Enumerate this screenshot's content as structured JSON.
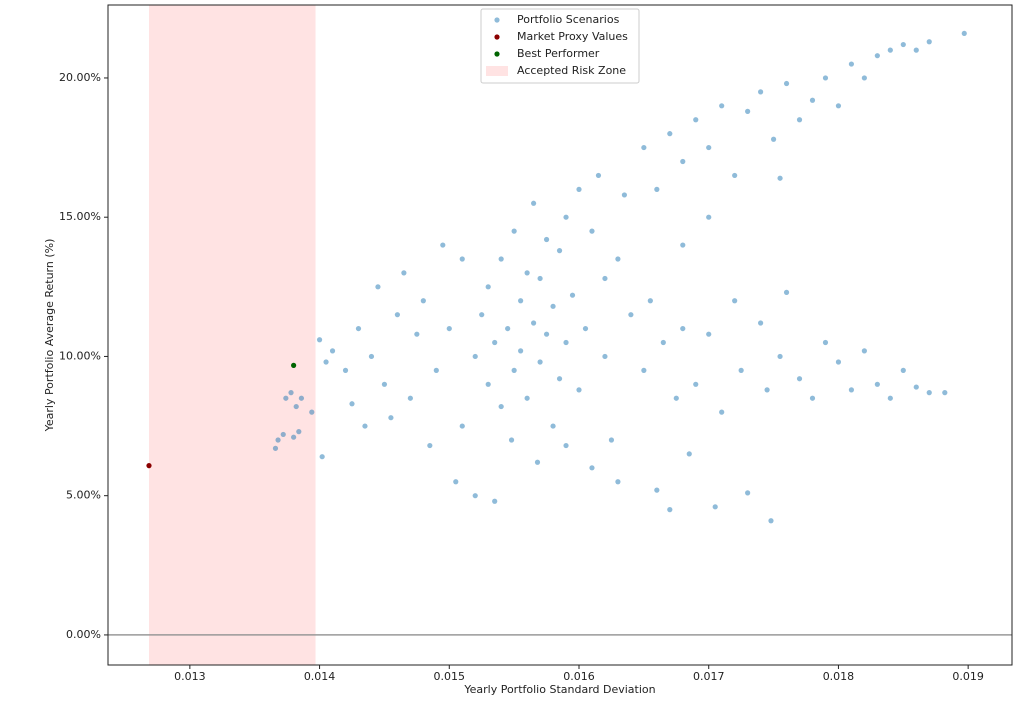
{
  "chart_data": {
    "type": "scatter",
    "xlabel": "Yearly Portfolio Standard Deviation",
    "ylabel": "Yearly Portfolio Average Return (%)",
    "xlim": [
      0.012369,
      0.019338
    ],
    "ylim": [
      -1.08,
      22.62
    ],
    "xticks": [
      0.013,
      0.014,
      0.015,
      0.016,
      0.017,
      0.018,
      0.019
    ],
    "yticks": [
      {
        "value": 0,
        "label": "0.00%"
      },
      {
        "value": 5,
        "label": "5.00%"
      },
      {
        "value": 10,
        "label": "10.00%"
      },
      {
        "value": 15,
        "label": "15.00%"
      },
      {
        "value": 20,
        "label": "20.00%"
      }
    ],
    "legend": "upper center",
    "span": {
      "name": "Accepted Risk Zone",
      "color": "#ffe3e3",
      "x": [
        0.012685,
        0.013969
      ]
    },
    "hline": {
      "y": 0,
      "color": "#999999"
    },
    "series": [
      {
        "name": "Portfolio Scenarios",
        "color": "#1f77b4",
        "opacity": 0.5,
        "x": [
          0.01366,
          0.01368,
          0.01372,
          0.0138,
          0.01384,
          0.01374,
          0.01378,
          0.01382,
          0.01386,
          0.01394,
          0.01402,
          0.014,
          0.01405,
          0.0141,
          0.0142,
          0.01425,
          0.0143,
          0.01435,
          0.0144,
          0.01445,
          0.0145,
          0.01455,
          0.0146,
          0.01465,
          0.0147,
          0.01475,
          0.0148,
          0.01485,
          0.0149,
          0.01495,
          0.015,
          0.01505,
          0.0151,
          0.0151,
          0.0152,
          0.01525,
          0.0153,
          0.0153,
          0.01535,
          0.0154,
          0.0154,
          0.01545,
          0.0155,
          0.0155,
          0.01555,
          0.01555,
          0.0156,
          0.0156,
          0.01565,
          0.01565,
          0.0157,
          0.0157,
          0.01575,
          0.01575,
          0.0158,
          0.0158,
          0.01585,
          0.01585,
          0.0159,
          0.0159,
          0.01595,
          0.016,
          0.016,
          0.01605,
          0.0161,
          0.01615,
          0.0162,
          0.0162,
          0.01625,
          0.0163,
          0.01635,
          0.0164,
          0.0152,
          0.01535,
          0.01548,
          0.01568,
          0.0159,
          0.0161,
          0.0163,
          0.0165,
          0.01655,
          0.0166,
          0.01665,
          0.0167,
          0.01675,
          0.0168,
          0.01685,
          0.0169,
          0.017,
          0.01705,
          0.0171,
          0.0172,
          0.01725,
          0.0173,
          0.0174,
          0.01745,
          0.01748,
          0.01755,
          0.0176,
          0.0177,
          0.0178,
          0.0179,
          0.018,
          0.0181,
          0.0182,
          0.0183,
          0.0184,
          0.0185,
          0.0186,
          0.0187,
          0.01882,
          0.0165,
          0.0166,
          0.0167,
          0.0168,
          0.0169,
          0.017,
          0.0171,
          0.0172,
          0.0173,
          0.0174,
          0.0175,
          0.0176,
          0.0177,
          0.0178,
          0.0179,
          0.018,
          0.0181,
          0.0182,
          0.0183,
          0.0184,
          0.0185,
          0.0186,
          0.0187,
          0.01897,
          0.01755,
          0.017,
          0.0168
        ],
        "values": [
          6.7,
          7.0,
          7.2,
          7.1,
          7.3,
          8.5,
          8.7,
          8.2,
          8.5,
          8.0,
          6.4,
          10.6,
          9.8,
          10.2,
          9.5,
          8.3,
          11.0,
          7.5,
          10.0,
          12.5,
          9.0,
          7.8,
          11.5,
          13.0,
          8.5,
          10.8,
          12.0,
          6.8,
          9.5,
          14.0,
          11.0,
          5.5,
          13.5,
          7.5,
          10.0,
          11.5,
          9.0,
          12.5,
          10.5,
          8.2,
          13.5,
          11.0,
          9.5,
          14.5,
          12.0,
          10.2,
          8.5,
          13.0,
          11.2,
          15.5,
          9.8,
          12.8,
          10.8,
          14.2,
          7.5,
          11.8,
          13.8,
          9.2,
          15.0,
          10.5,
          12.2,
          16.0,
          8.8,
          11.0,
          14.5,
          16.5,
          10.0,
          12.8,
          7.0,
          13.5,
          15.8,
          11.5,
          5.0,
          4.8,
          7.0,
          6.2,
          6.8,
          6.0,
          5.5,
          9.5,
          12.0,
          5.2,
          10.5,
          4.5,
          8.5,
          11.0,
          6.5,
          9.0,
          10.8,
          4.6,
          8.0,
          12.0,
          9.5,
          5.1,
          11.2,
          8.8,
          4.1,
          10.0,
          12.3,
          9.2,
          8.5,
          10.5,
          9.8,
          8.8,
          10.2,
          9.0,
          8.5,
          9.5,
          8.9,
          8.7,
          8.7,
          17.5,
          16.0,
          18.0,
          17.0,
          18.5,
          17.5,
          19.0,
          16.5,
          18.8,
          19.5,
          17.8,
          19.8,
          18.5,
          19.2,
          20.0,
          19.0,
          20.5,
          20.0,
          20.8,
          21.0,
          21.2,
          21.0,
          21.3,
          21.6,
          16.4,
          15.0,
          14.0
        ]
      },
      {
        "name": "Market Proxy Values",
        "color": "#8b0000",
        "opacity": 1,
        "x": [
          0.012685
        ],
        "values": [
          6.08
        ]
      },
      {
        "name": "Best Performer",
        "color": "#006400",
        "opacity": 1,
        "x": [
          0.0138
        ],
        "values": [
          9.68
        ]
      }
    ]
  }
}
